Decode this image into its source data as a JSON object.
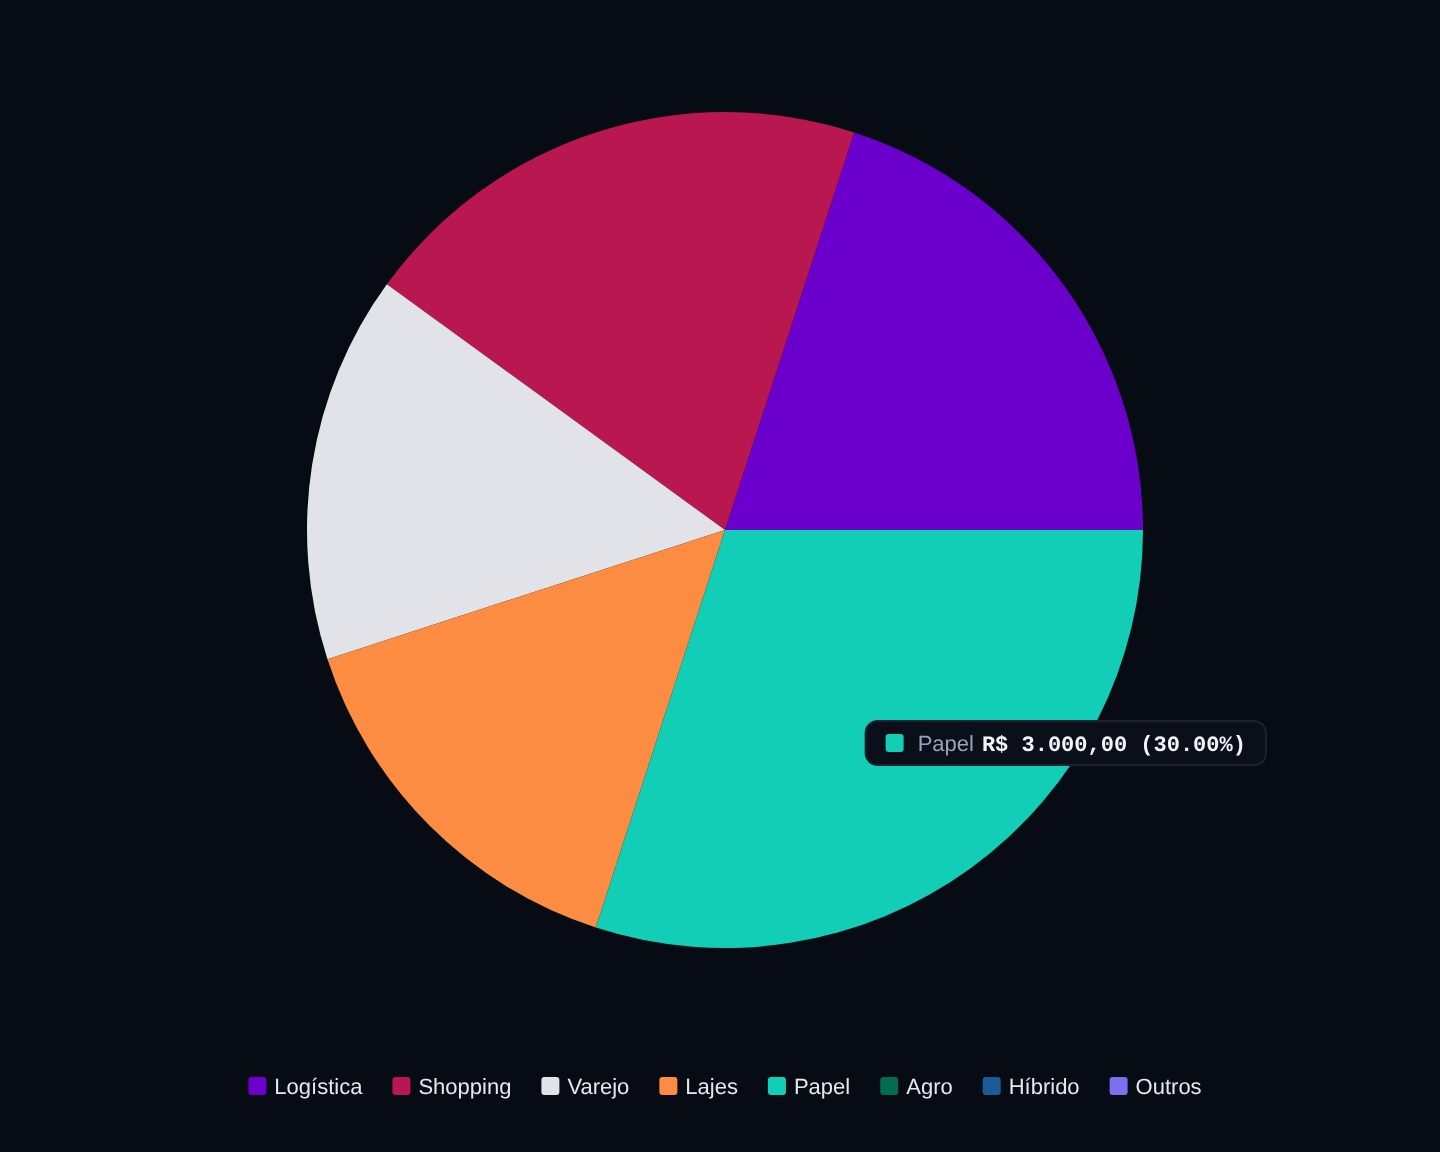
{
  "chart_data": {
    "type": "pie",
    "categories": [
      "Logística",
      "Shopping",
      "Varejo",
      "Lajes",
      "Papel",
      "Agro",
      "Híbrido",
      "Outros"
    ],
    "values": [
      2000,
      2000,
      1500,
      1500,
      3000,
      0,
      0,
      0
    ],
    "colors": [
      "#6b00cc",
      "#b8184f",
      "#e2e3e8",
      "#fb8c42",
      "#13ceb6",
      "#036b4f",
      "#1b5c96",
      "#7c6ff0"
    ],
    "value_labels": [
      null,
      null,
      null,
      null,
      "R$ 3.000,00 (30.00%)",
      null,
      null,
      null
    ],
    "legend": "bottom"
  }
}
